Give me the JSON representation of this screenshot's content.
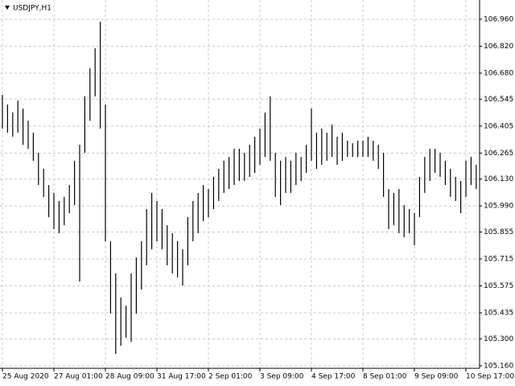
{
  "chart_data": {
    "type": "range_bar",
    "title": "USDJPY,H1",
    "color": "#000000",
    "grid": true,
    "categories": [
      "25 Aug 2020",
      null,
      null,
      null,
      null,
      null,
      null,
      null,
      null,
      null,
      "27 Aug 01:00",
      null,
      null,
      null,
      null,
      null,
      null,
      null,
      null,
      null,
      "28 Aug 09:00",
      null,
      null,
      null,
      null,
      null,
      null,
      null,
      null,
      null,
      "31 Aug 17:00",
      null,
      null,
      null,
      null,
      null,
      null,
      null,
      null,
      null,
      "2 Sep 01:00",
      null,
      null,
      null,
      null,
      null,
      null,
      null,
      null,
      null,
      "3 Sep 09:00",
      null,
      null,
      null,
      null,
      null,
      null,
      null,
      null,
      null,
      "4 Sep 17:00",
      null,
      null,
      null,
      null,
      null,
      null,
      null,
      null,
      null,
      "8 Sep 01:00",
      null,
      null,
      null,
      null,
      null,
      null,
      null,
      null,
      null,
      "9 Sep 09:00",
      null,
      null,
      null,
      null,
      null,
      null,
      null,
      null,
      null,
      "10 Sep 17:00",
      null,
      null
    ],
    "high": [
      106.567,
      106.517,
      106.475,
      106.538,
      106.496,
      106.433,
      106.371,
      106.266,
      106.183,
      106.099,
      106.058,
      106.016,
      106.037,
      106.099,
      106.225,
      106.308,
      106.559,
      106.705,
      106.809,
      106.947,
      106.517,
      105.807,
      105.64,
      105.515,
      105.473,
      105.64,
      105.723,
      105.807,
      105.974,
      106.058,
      106.016,
      105.974,
      105.89,
      105.849,
      105.807,
      105.765,
      105.932,
      106.016,
      106.058,
      106.099,
      106.078,
      106.141,
      106.183,
      106.225,
      106.245,
      106.287,
      106.287,
      106.266,
      106.308,
      106.35,
      106.392,
      106.475,
      106.559,
      106.266,
      106.225,
      106.245,
      106.225,
      106.266,
      106.245,
      106.308,
      106.496,
      106.371,
      106.392,
      106.371,
      106.413,
      106.35,
      106.371,
      106.329,
      106.316,
      106.329,
      106.329,
      106.35,
      106.329,
      106.308,
      106.266,
      106.078,
      106.058,
      106.078,
      105.995,
      105.974,
      105.953,
      106.141,
      106.245,
      106.287,
      106.287,
      106.266,
      106.225,
      106.183,
      106.141,
      106.12,
      106.225,
      106.245,
      106.204
    ],
    "low": [
      106.392,
      106.371,
      106.35,
      106.371,
      106.308,
      106.287,
      106.225,
      106.099,
      106.037,
      105.932,
      105.87,
      105.849,
      105.89,
      105.953,
      105.995,
      105.598,
      106.266,
      106.433,
      106.559,
      106.392,
      105.807,
      105.431,
      105.222,
      105.264,
      105.306,
      105.285,
      105.431,
      105.556,
      105.682,
      105.765,
      105.807,
      105.765,
      105.682,
      105.64,
      105.619,
      105.577,
      105.682,
      105.807,
      105.849,
      105.911,
      105.932,
      105.974,
      106.016,
      106.058,
      106.078,
      106.099,
      106.12,
      106.12,
      106.141,
      106.162,
      106.204,
      106.245,
      106.225,
      106.037,
      105.995,
      106.058,
      106.058,
      106.099,
      106.12,
      106.162,
      106.225,
      106.183,
      106.204,
      106.225,
      106.245,
      106.204,
      106.225,
      106.245,
      106.245,
      106.245,
      106.245,
      106.245,
      106.225,
      106.183,
      106.037,
      105.87,
      105.89,
      105.849,
      105.828,
      105.849,
      105.786,
      105.932,
      106.058,
      106.12,
      106.162,
      106.141,
      106.099,
      106.037,
      106.016,
      105.953,
      106.037,
      106.099,
      106.078
    ],
    "ylim": [
      105.147,
      107.06
    ],
    "yticks": [
      {
        "value": 106.96,
        "label": "106.960"
      },
      {
        "value": 106.82,
        "label": "106.820"
      },
      {
        "value": 106.68,
        "label": "106.680"
      },
      106.545,
      106.405,
      106.265,
      {
        "value": 106.13,
        "label": "106.130"
      },
      {
        "value": 105.99,
        "label": "105.990"
      },
      105.855,
      105.715,
      105.575,
      105.435,
      {
        "value": 105.3,
        "label": "105.300"
      },
      {
        "value": 105.16,
        "label": "105.160"
      }
    ]
  }
}
